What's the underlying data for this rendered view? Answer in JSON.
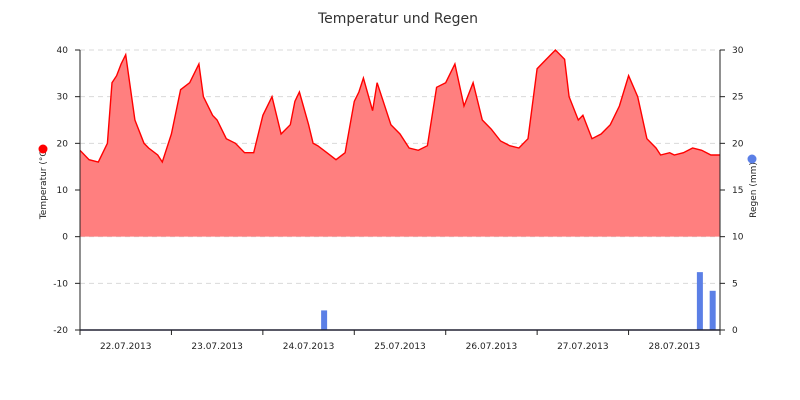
{
  "chart_data": {
    "type": "line",
    "title": "Temperatur und Regen",
    "x_ticks": [
      "22.07.2013",
      "23.07.2013",
      "24.07.2013",
      "25.07.2013",
      "26.07.2013",
      "27.07.2013",
      "28.07.2013"
    ],
    "x_range": [
      0,
      7
    ],
    "y_left": {
      "label": "Temperatur (°C)",
      "lim": [
        -20,
        40
      ],
      "ticks": [
        -20,
        -10,
        0,
        10,
        20,
        30,
        40
      ]
    },
    "y_right": {
      "label": "Regen (mm)",
      "lim": [
        0,
        30
      ],
      "ticks": [
        0,
        5,
        10,
        15,
        20,
        25,
        30
      ]
    },
    "grid": true,
    "series": [
      {
        "name": "Temperatur",
        "kind": "area",
        "axis": "left",
        "color": "#ff0000",
        "fill": "#ff7f7f",
        "legend_marker_color": "#ff0000",
        "x": [
          0,
          0.1,
          0.2,
          0.3,
          0.35,
          0.4,
          0.45,
          0.5,
          0.6,
          0.7,
          0.75,
          0.85,
          0.9,
          1.0,
          1.1,
          1.2,
          1.3,
          1.35,
          1.45,
          1.5,
          1.6,
          1.7,
          1.8,
          1.9,
          2.0,
          2.1,
          2.2,
          2.3,
          2.35,
          2.4,
          2.5,
          2.55,
          2.6,
          2.7,
          2.8,
          2.9,
          3.0,
          3.05,
          3.1,
          3.2,
          3.25,
          3.3,
          3.4,
          3.5,
          3.6,
          3.7,
          3.8,
          3.9,
          4.0,
          4.1,
          4.2,
          4.3,
          4.4,
          4.5,
          4.6,
          4.7,
          4.8,
          4.9,
          5.0,
          5.1,
          5.2,
          5.3,
          5.35,
          5.45,
          5.5,
          5.6,
          5.7,
          5.8,
          5.9,
          6.0,
          6.1,
          6.2,
          6.3,
          6.35,
          6.45,
          6.5,
          6.6,
          6.7,
          6.8,
          6.9,
          7.0
        ],
        "y": [
          18.5,
          16.5,
          16.0,
          20.0,
          33.0,
          34.5,
          37.0,
          39.0,
          25.0,
          20.0,
          19.0,
          17.5,
          16.0,
          22.0,
          31.5,
          33.0,
          37.0,
          30.0,
          26.0,
          25.0,
          21.0,
          20.0,
          18.0,
          18.0,
          26.0,
          30.0,
          22.0,
          24.0,
          29.0,
          31.0,
          24.0,
          20.0,
          19.5,
          18.0,
          16.5,
          18.0,
          29.0,
          31.0,
          34.0,
          27.0,
          33.0,
          30.0,
          24.0,
          22.0,
          19.0,
          18.5,
          19.5,
          32.0,
          33.0,
          37.0,
          28.0,
          33.0,
          25.0,
          23.0,
          20.5,
          19.5,
          19.0,
          21.0,
          36.0,
          38.0,
          41.0,
          38.0,
          30.0,
          25.0,
          26.0,
          21.0,
          22.0,
          24.0,
          28.0,
          34.5,
          30.0,
          21.0,
          19.0,
          17.5,
          18.0,
          17.5,
          18.0,
          19.0,
          18.5,
          17.5,
          17.5
        ]
      },
      {
        "name": "Regen",
        "kind": "bar",
        "axis": "right",
        "color": "#5b7fe6",
        "legend_marker_color": "#5b7fe6",
        "x": [
          2.67,
          6.78,
          6.92
        ],
        "values": [
          2.1,
          6.2,
          4.2
        ]
      }
    ]
  }
}
